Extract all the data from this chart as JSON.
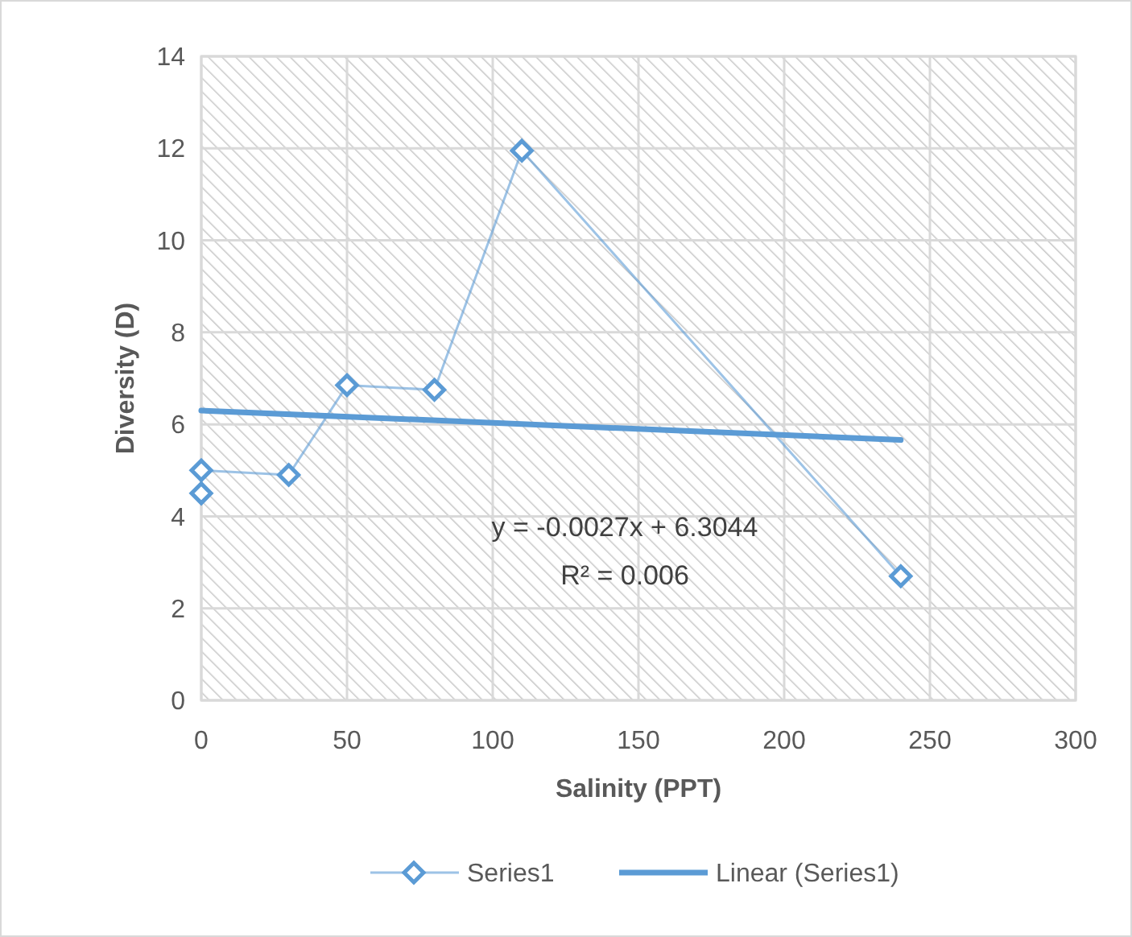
{
  "chart_data": {
    "type": "line",
    "xlabel": "Salinity (PPT)",
    "ylabel": "Diversity (D)",
    "xlim": [
      0,
      300
    ],
    "xticks": [
      0,
      50,
      100,
      150,
      200,
      250,
      300
    ],
    "ylim": [
      0,
      14
    ],
    "yticks": [
      0,
      2,
      4,
      6,
      8,
      10,
      12,
      14
    ],
    "grid": true,
    "legend": "bottom",
    "series": [
      {
        "name": "Series1",
        "marker": "diamond",
        "color": "#5b9bd5",
        "x": [
          0,
          0,
          30,
          50,
          80,
          110,
          240
        ],
        "values": [
          4.5,
          5.0,
          4.9,
          6.85,
          6.75,
          11.95,
          2.7
        ]
      },
      {
        "name": "Linear (Series1)",
        "marker": "none",
        "color": "#5b9bd5",
        "x": [
          0,
          240
        ],
        "values": [
          6.3,
          5.66
        ]
      }
    ],
    "annotations": [
      "y = -0.0027x + 6.3044",
      "R² = 0.006"
    ]
  }
}
